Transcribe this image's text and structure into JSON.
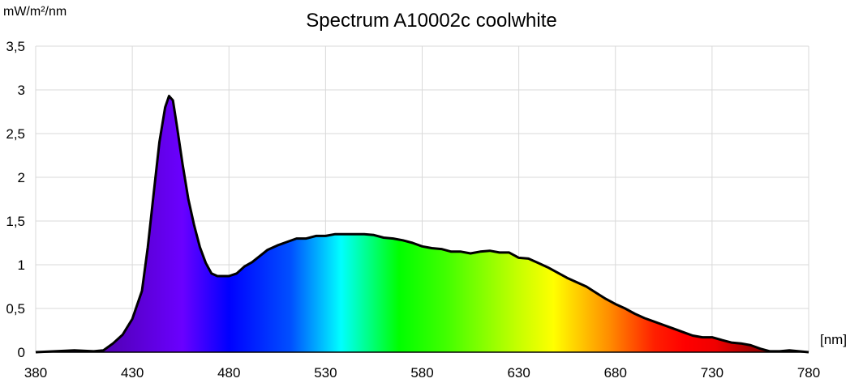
{
  "chart_data": {
    "type": "area",
    "title": "Spectrum A10002c coolwhite",
    "xlabel": "[nm]",
    "ylabel": "mW/m²/nm",
    "xlim": [
      380,
      780
    ],
    "ylim": [
      0,
      3.5
    ],
    "grid": true,
    "legend": "none",
    "x_ticks": [
      "380",
      "430",
      "480",
      "530",
      "580",
      "630",
      "680",
      "730",
      "780"
    ],
    "y_ticks": [
      "0",
      "0,5",
      "1",
      "1,5",
      "2",
      "2,5",
      "3",
      "3,5"
    ],
    "x": [
      380,
      390,
      400,
      410,
      415,
      420,
      425,
      430,
      435,
      438,
      441,
      444,
      447,
      449,
      451,
      453,
      456,
      459,
      462,
      465,
      468,
      471,
      474,
      477,
      480,
      484,
      488,
      492,
      496,
      500,
      505,
      510,
      515,
      520,
      525,
      530,
      535,
      540,
      545,
      550,
      555,
      560,
      565,
      570,
      575,
      580,
      585,
      590,
      595,
      600,
      605,
      610,
      615,
      620,
      625,
      630,
      635,
      640,
      645,
      650,
      655,
      660,
      665,
      670,
      675,
      680,
      685,
      690,
      695,
      700,
      705,
      710,
      715,
      720,
      725,
      730,
      735,
      740,
      745,
      750,
      755,
      760,
      765,
      770,
      775,
      780
    ],
    "values": [
      0.0,
      0.01,
      0.02,
      0.01,
      0.02,
      0.1,
      0.2,
      0.38,
      0.7,
      1.2,
      1.8,
      2.4,
      2.8,
      2.93,
      2.88,
      2.6,
      2.15,
      1.75,
      1.45,
      1.2,
      1.02,
      0.9,
      0.87,
      0.87,
      0.87,
      0.9,
      0.98,
      1.03,
      1.1,
      1.17,
      1.22,
      1.26,
      1.3,
      1.3,
      1.33,
      1.33,
      1.35,
      1.35,
      1.35,
      1.35,
      1.34,
      1.31,
      1.3,
      1.28,
      1.25,
      1.21,
      1.19,
      1.18,
      1.15,
      1.15,
      1.13,
      1.15,
      1.16,
      1.14,
      1.14,
      1.08,
      1.07,
      1.02,
      0.97,
      0.91,
      0.85,
      0.8,
      0.75,
      0.68,
      0.61,
      0.55,
      0.5,
      0.44,
      0.39,
      0.35,
      0.31,
      0.27,
      0.23,
      0.19,
      0.17,
      0.17,
      0.14,
      0.11,
      0.1,
      0.08,
      0.04,
      0.01,
      0.01,
      0.02,
      0.01,
      0.0
    ]
  }
}
